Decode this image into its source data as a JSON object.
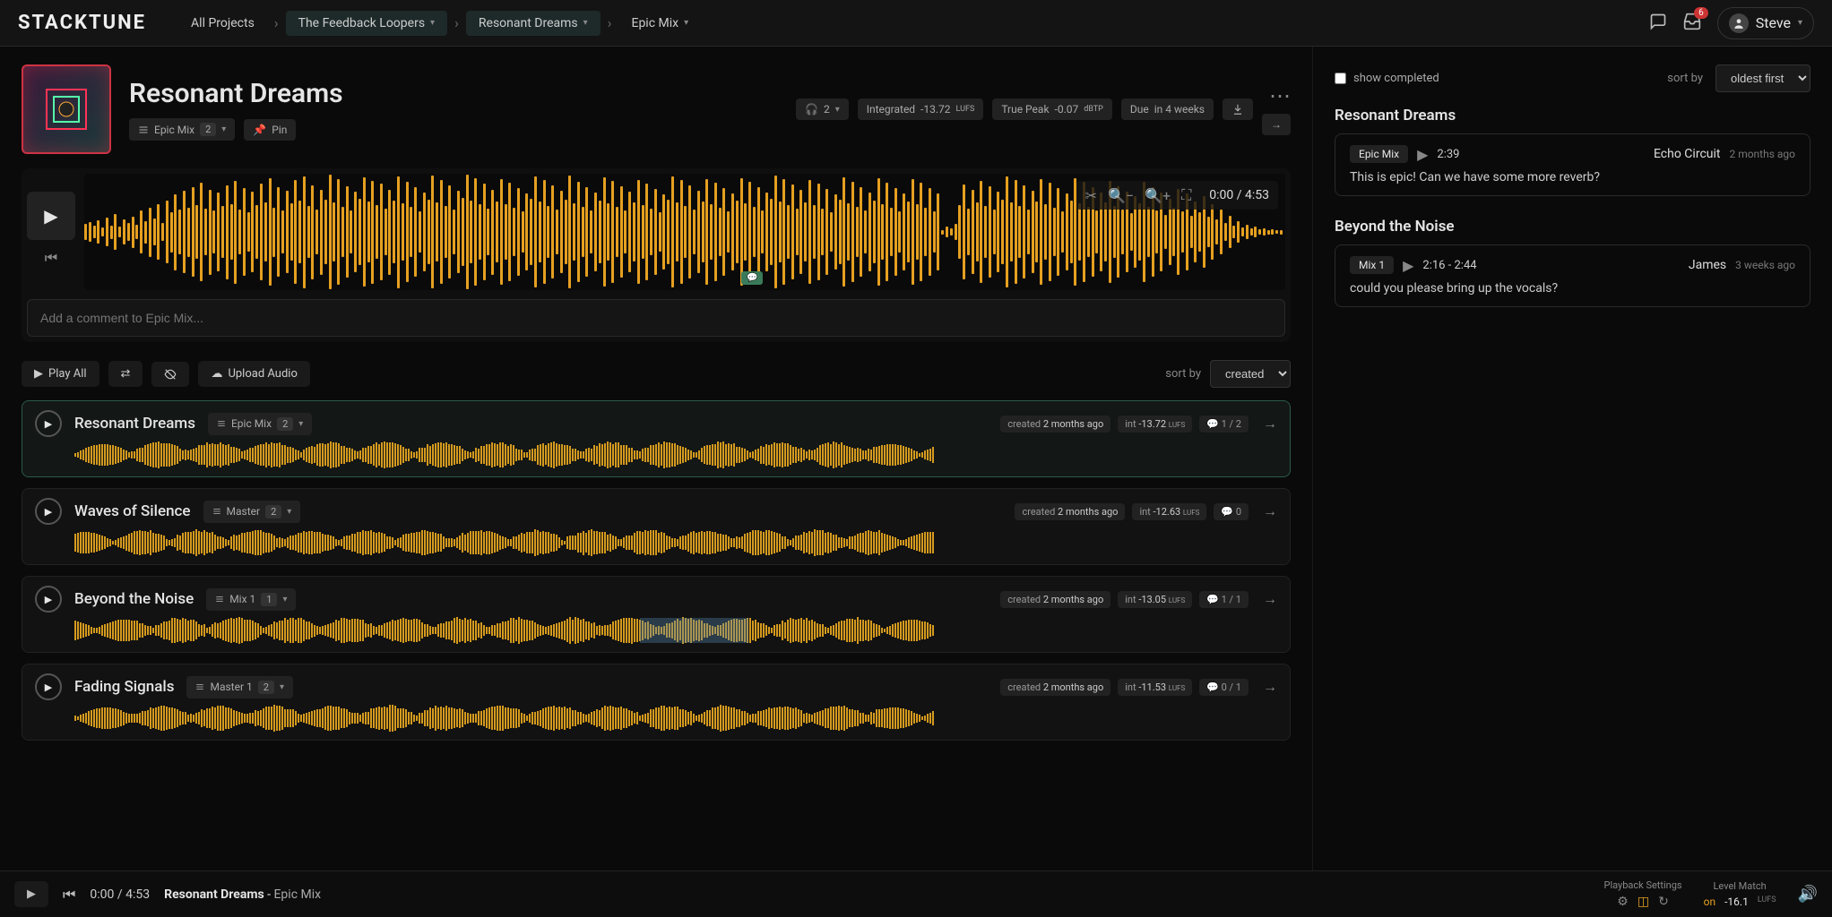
{
  "app": {
    "logo": "STACKTUNE"
  },
  "topbar": {
    "breadcrumbs": [
      {
        "label": "All Projects",
        "active": false,
        "dropdown": false
      },
      {
        "label": "The Feedback Loopers",
        "active": true,
        "dropdown": true
      },
      {
        "label": "Resonant Dreams",
        "active": true,
        "dropdown": true
      },
      {
        "label": "Epic Mix",
        "active": false,
        "dropdown": true
      }
    ],
    "inbox_count": "6",
    "user_name": "Steve"
  },
  "project": {
    "title": "Resonant Dreams",
    "mix_name": "Epic Mix",
    "mix_count": "2",
    "pin_label": "Pin",
    "listeners": "2",
    "integrated_label": "Integrated",
    "integrated_value": "-13.72",
    "integrated_unit": "LUFS",
    "truepeak_label": "True Peak",
    "truepeak_value": "-0.07",
    "truepeak_unit": "dBTP",
    "due_label": "Due",
    "due_value": "in 4 weeks"
  },
  "waveform": {
    "time_current": "0:00",
    "time_total": "4:53",
    "comment_placeholder": "Add a comment to Epic Mix...",
    "accent_color": "#e5a020",
    "bg_color": "#0a0a0a",
    "bar_count": 280,
    "heights": [
      18,
      22,
      14,
      26,
      10,
      32,
      15,
      40,
      12,
      28,
      20,
      35,
      16,
      48,
      25,
      55,
      30,
      62,
      20,
      70,
      45,
      85,
      50,
      92,
      55,
      100,
      60,
      110,
      52,
      95,
      48,
      88,
      58,
      105,
      62,
      115,
      50,
      98,
      44,
      90,
      60,
      108,
      66,
      120,
      55,
      100,
      48,
      92,
      64,
      116,
      70,
      125,
      58,
      105,
      50,
      95,
      72,
      128,
      66,
      118,
      56,
      102,
      48,
      90,
      74,
      122,
      68,
      115,
      60,
      108,
      52,
      95,
      70,
      125,
      64,
      112,
      56,
      100,
      46,
      88,
      72,
      126,
      66,
      116,
      58,
      104,
      50,
      92,
      76,
      128,
      70,
      120,
      62,
      108,
      52,
      95,
      68,
      118,
      62,
      110,
      54,
      98,
      46,
      86,
      74,
      124,
      68,
      116,
      58,
      104,
      50,
      92,
      72,
      126,
      64,
      112,
      56,
      100,
      48,
      88,
      70,
      122,
      64,
      114,
      56,
      102,
      48,
      90,
      66,
      116,
      60,
      108,
      52,
      96,
      44,
      84,
      72,
      124,
      66,
      116,
      58,
      104,
      50,
      92,
      68,
      118,
      62,
      110,
      54,
      98,
      46,
      86,
      70,
      120,
      64,
      112,
      56,
      100,
      48,
      88,
      74,
      126,
      68,
      118,
      60,
      106,
      52,
      94,
      66,
      116,
      60,
      108,
      52,
      96,
      44,
      84,
      72,
      122,
      64,
      112,
      56,
      100,
      48,
      88,
      70,
      120,
      62,
      110,
      54,
      98,
      46,
      86,
      68,
      118,
      62,
      110,
      54,
      98,
      46,
      86,
      5,
      12,
      8,
      18,
      60,
      106,
      52,
      94,
      66,
      114,
      58,
      102,
      50,
      90,
      72,
      124,
      66,
      116,
      58,
      104,
      50,
      92,
      68,
      118,
      62,
      110,
      54,
      98,
      46,
      86,
      70,
      120,
      64,
      112,
      56,
      100,
      48,
      88,
      66,
      114,
      58,
      102,
      50,
      90,
      42,
      80,
      64,
      112,
      56,
      100,
      48,
      88,
      38,
      74,
      54,
      96,
      46,
      86,
      36,
      68,
      44,
      80,
      34,
      62,
      28,
      50,
      20,
      36,
      14,
      24,
      10,
      16,
      8,
      12,
      6,
      8,
      5,
      6,
      4,
      5
    ]
  },
  "list": {
    "play_all": "Play All",
    "upload": "Upload Audio",
    "sort_label": "sort by",
    "sort_value": "created",
    "tracks": [
      {
        "title": "Resonant Dreams",
        "mix": "Epic Mix",
        "mix_count": "2",
        "created": "2 months ago",
        "int": "-13.72",
        "int_unit": "LUFS",
        "comments": "1 / 2",
        "active": true,
        "selection": null
      },
      {
        "title": "Waves of Silence",
        "mix": "Master",
        "mix_count": "2",
        "created": "2 months ago",
        "int": "-12.63",
        "int_unit": "LUFS",
        "comments": "0",
        "active": false,
        "selection": null
      },
      {
        "title": "Beyond the Noise",
        "mix": "Mix 1",
        "mix_count": "1",
        "created": "2 months ago",
        "int": "-13.05",
        "int_unit": "LUFS",
        "comments": "1 / 1",
        "active": false,
        "selection": {
          "left_pct": 47,
          "width_pct": 9
        }
      },
      {
        "title": "Fading Signals",
        "mix": "Master 1",
        "mix_count": "2",
        "created": "2 months ago",
        "int": "-11.53",
        "int_unit": "LUFS",
        "comments": "0 / 1",
        "active": false,
        "selection": null
      }
    ],
    "created_label": "created",
    "int_label": "int"
  },
  "comments": {
    "show_completed": "show completed",
    "sort_label": "sort by",
    "sort_value": "oldest first",
    "blocks": [
      {
        "track": "Resonant Dreams",
        "tag": "Epic Mix",
        "time": "2:39",
        "author": "Echo Circuit",
        "when": "2 months ago",
        "body": "This is epic! Can we have some more reverb?"
      },
      {
        "track": "Beyond the Noise",
        "tag": "Mix 1",
        "time": "2:16 - 2:44",
        "author": "James",
        "when": "3 weeks ago",
        "body": "could you please bring up the vocals?"
      }
    ]
  },
  "player": {
    "time_current": "0:00",
    "time_total": "4:53",
    "now_title": "Resonant Dreams",
    "now_mix": "Epic Mix",
    "playback_label": "Playback Settings",
    "level_label": "Level Match",
    "level_on": "on",
    "level_value": "-16.1",
    "level_unit": "LUFS"
  },
  "colors": {
    "accent": "#e5a020",
    "bg": "#0a0a0a",
    "panel": "#141414",
    "danger": "#cc3333"
  }
}
